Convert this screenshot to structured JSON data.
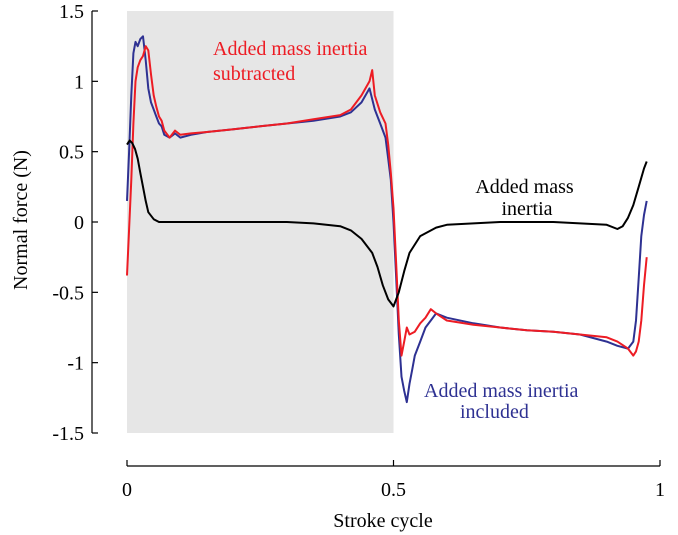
{
  "chart_data": {
    "type": "line",
    "xlabel": "Stroke cycle",
    "ylabel": "Normal force (N)",
    "xlim": [
      0,
      1
    ],
    "ylim": [
      -1.5,
      1.5
    ],
    "xticks": [
      "0",
      "0.5",
      "1"
    ],
    "xtick_values": [
      0,
      0.5,
      1
    ],
    "yticks": [
      "1.5",
      "1",
      "0.5",
      "0",
      "-0.5",
      "-1",
      "-1.5"
    ],
    "ytick_values": [
      1.5,
      1,
      0.5,
      0,
      -0.5,
      -1,
      -1.5
    ],
    "grid": false,
    "shaded_region": {
      "x": [
        0,
        0.5
      ],
      "color": "#e6e6e6"
    },
    "series": [
      {
        "name": "Added mass inertia included",
        "color": "#2e3192",
        "x": [
          0.0,
          0.004,
          0.008,
          0.012,
          0.016,
          0.02,
          0.025,
          0.03,
          0.035,
          0.04,
          0.045,
          0.05,
          0.055,
          0.06,
          0.065,
          0.07,
          0.08,
          0.09,
          0.1,
          0.12,
          0.15,
          0.2,
          0.25,
          0.3,
          0.35,
          0.4,
          0.42,
          0.44,
          0.455,
          0.465,
          0.475,
          0.485,
          0.49,
          0.495,
          0.5,
          0.505,
          0.51,
          0.515,
          0.52,
          0.525,
          0.53,
          0.535,
          0.54,
          0.55,
          0.56,
          0.57,
          0.58,
          0.6,
          0.65,
          0.7,
          0.75,
          0.8,
          0.85,
          0.9,
          0.92,
          0.94,
          0.95,
          0.955,
          0.96,
          0.965,
          0.97,
          0.975
        ],
        "y": [
          0.15,
          0.5,
          0.9,
          1.2,
          1.28,
          1.25,
          1.3,
          1.32,
          1.15,
          0.95,
          0.85,
          0.8,
          0.75,
          0.7,
          0.68,
          0.62,
          0.6,
          0.63,
          0.6,
          0.62,
          0.64,
          0.66,
          0.68,
          0.7,
          0.72,
          0.75,
          0.78,
          0.85,
          0.95,
          0.8,
          0.7,
          0.6,
          0.45,
          0.3,
          0.0,
          -0.4,
          -0.8,
          -1.1,
          -1.2,
          -1.28,
          -1.15,
          -1.05,
          -0.95,
          -0.85,
          -0.75,
          -0.7,
          -0.65,
          -0.68,
          -0.72,
          -0.75,
          -0.77,
          -0.78,
          -0.8,
          -0.85,
          -0.88,
          -0.9,
          -0.85,
          -0.7,
          -0.4,
          -0.1,
          0.05,
          0.15
        ]
      },
      {
        "name": "Added mass inertia subtracted",
        "color": "#ed1c24",
        "x": [
          0.0,
          0.004,
          0.008,
          0.012,
          0.016,
          0.02,
          0.025,
          0.03,
          0.035,
          0.04,
          0.045,
          0.05,
          0.055,
          0.06,
          0.065,
          0.07,
          0.08,
          0.09,
          0.1,
          0.12,
          0.15,
          0.2,
          0.25,
          0.3,
          0.35,
          0.4,
          0.42,
          0.44,
          0.455,
          0.46,
          0.465,
          0.475,
          0.485,
          0.49,
          0.495,
          0.5,
          0.505,
          0.51,
          0.515,
          0.52,
          0.525,
          0.53,
          0.54,
          0.55,
          0.56,
          0.57,
          0.58,
          0.6,
          0.65,
          0.7,
          0.75,
          0.8,
          0.85,
          0.9,
          0.92,
          0.94,
          0.95,
          0.955,
          0.96,
          0.965,
          0.97,
          0.975
        ],
        "y": [
          -0.38,
          -0.05,
          0.3,
          0.7,
          1.0,
          1.1,
          1.15,
          1.18,
          1.25,
          1.22,
          1.05,
          0.9,
          0.82,
          0.75,
          0.72,
          0.65,
          0.6,
          0.65,
          0.62,
          0.63,
          0.64,
          0.66,
          0.68,
          0.7,
          0.73,
          0.76,
          0.8,
          0.9,
          1.0,
          1.08,
          0.9,
          0.78,
          0.7,
          0.55,
          0.35,
          0.1,
          -0.3,
          -0.7,
          -0.95,
          -0.85,
          -0.75,
          -0.8,
          -0.78,
          -0.72,
          -0.68,
          -0.62,
          -0.65,
          -0.7,
          -0.73,
          -0.75,
          -0.77,
          -0.78,
          -0.8,
          -0.82,
          -0.85,
          -0.9,
          -0.95,
          -0.92,
          -0.85,
          -0.7,
          -0.45,
          -0.25
        ]
      },
      {
        "name": "Added mass inertia",
        "color": "#000000",
        "x": [
          0.0,
          0.005,
          0.01,
          0.015,
          0.02,
          0.025,
          0.03,
          0.035,
          0.04,
          0.05,
          0.06,
          0.07,
          0.1,
          0.2,
          0.3,
          0.35,
          0.4,
          0.42,
          0.44,
          0.46,
          0.47,
          0.48,
          0.49,
          0.5,
          0.51,
          0.52,
          0.53,
          0.55,
          0.58,
          0.6,
          0.7,
          0.8,
          0.9,
          0.92,
          0.93,
          0.94,
          0.95,
          0.96,
          0.97,
          0.975
        ],
        "y": [
          0.55,
          0.58,
          0.56,
          0.52,
          0.45,
          0.35,
          0.25,
          0.15,
          0.07,
          0.02,
          0.0,
          0.0,
          0.0,
          0.0,
          0.0,
          -0.01,
          -0.03,
          -0.06,
          -0.12,
          -0.22,
          -0.32,
          -0.45,
          -0.55,
          -0.6,
          -0.5,
          -0.35,
          -0.22,
          -0.1,
          -0.04,
          -0.02,
          0.0,
          0.0,
          -0.02,
          -0.05,
          -0.03,
          0.03,
          0.12,
          0.25,
          0.38,
          0.43
        ]
      }
    ],
    "annotations": [
      {
        "lines": [
          "Added mass inertia",
          "subtracted"
        ],
        "color": "#ed1c24"
      },
      {
        "lines": [
          "Added mass",
          "inertia"
        ],
        "color": "#000000"
      },
      {
        "lines": [
          "Added mass inertia",
          "included"
        ],
        "color": "#2e3192"
      }
    ]
  }
}
